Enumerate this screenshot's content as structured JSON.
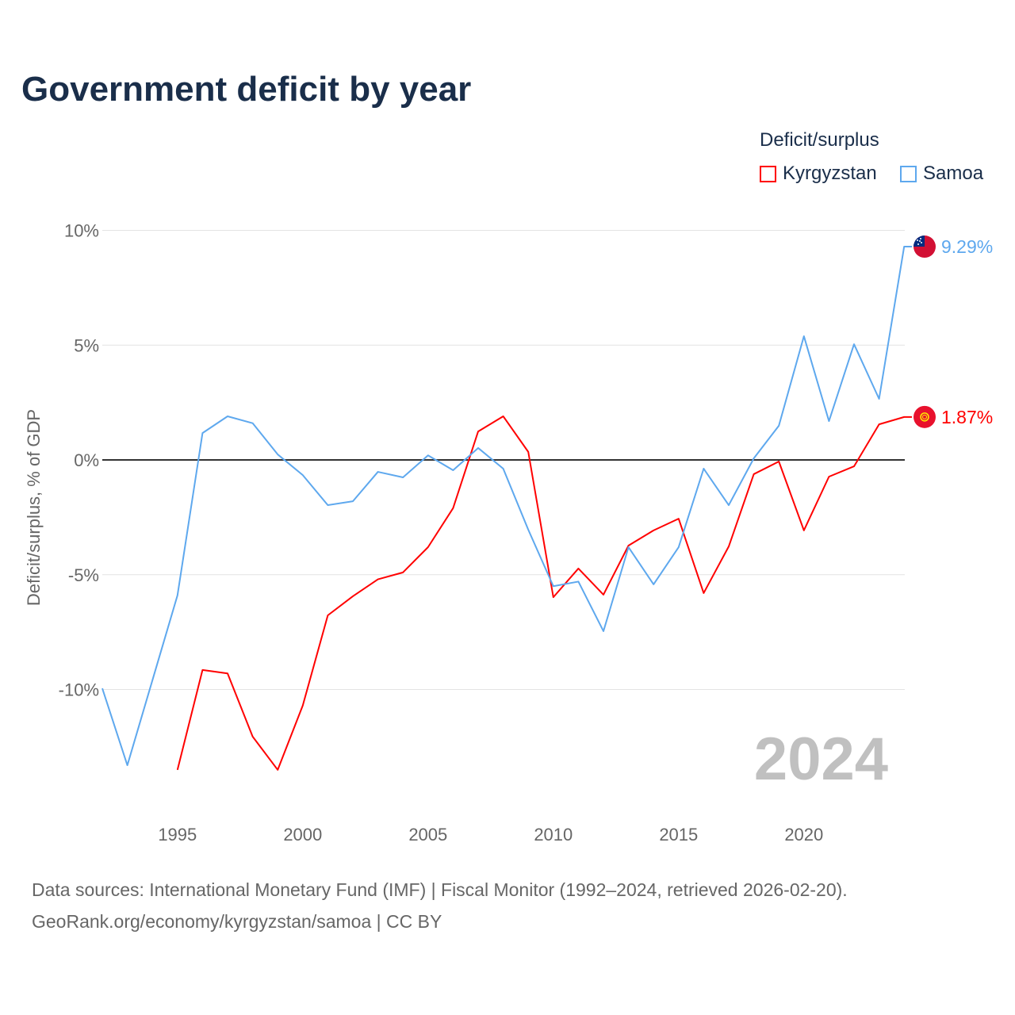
{
  "chart_data": {
    "type": "line",
    "title": "Government deficit by year",
    "legend_title": "Deficit/surplus",
    "legend_placement": "top-right",
    "ylabel": "Deficit/surplus, % of GDP",
    "xlabel": "",
    "ylim": [
      -14.5,
      10
    ],
    "xlim": [
      1992,
      2024
    ],
    "yticks": [
      {
        "v": 10,
        "label": "10%"
      },
      {
        "v": 5,
        "label": "5%"
      },
      {
        "v": 0,
        "label": "0%"
      },
      {
        "v": -5,
        "label": "-5%"
      },
      {
        "v": -10,
        "label": "-10%"
      }
    ],
    "xticks": [
      {
        "v": 1995,
        "label": "1995"
      },
      {
        "v": 2000,
        "label": "2000"
      },
      {
        "v": 2005,
        "label": "2005"
      },
      {
        "v": 2010,
        "label": "2010"
      },
      {
        "v": 2015,
        "label": "2015"
      },
      {
        "v": 2020,
        "label": "2020"
      }
    ],
    "year_watermark": "2024",
    "series": [
      {
        "name": "Kyrgyzstan",
        "color": "#ff0000",
        "end_label": "1.87%",
        "flag": "kyrgyzstan-flag",
        "x": [
          1995,
          1996,
          1997,
          1998,
          1999,
          2000,
          2001,
          2002,
          2003,
          2004,
          2005,
          2006,
          2007,
          2008,
          2009,
          2010,
          2011,
          2012,
          2013,
          2014,
          2015,
          2016,
          2017,
          2018,
          2019,
          2020,
          2021,
          2022,
          2023,
          2024
        ],
        "values": [
          -13.5,
          -9.15,
          -9.3,
          -12.05,
          -13.5,
          -10.7,
          -6.77,
          -5.94,
          -5.2,
          -4.9,
          -3.8,
          -2.1,
          1.24,
          1.9,
          0.35,
          -5.98,
          -4.73,
          -5.87,
          -3.73,
          -3.07,
          -2.56,
          -5.8,
          -3.77,
          -0.62,
          -0.07,
          -3.07,
          -0.73,
          -0.28,
          1.55,
          1.87
        ]
      },
      {
        "name": "Samoa",
        "color": "#5ea8ee",
        "end_label": "9.29%",
        "flag": "samoa-flag",
        "x": [
          1992,
          1993,
          1994,
          1995,
          1996,
          1997,
          1998,
          1999,
          2000,
          2001,
          2002,
          2003,
          2004,
          2005,
          2006,
          2007,
          2008,
          2009,
          2010,
          2011,
          2012,
          2013,
          2014,
          2015,
          2016,
          2017,
          2018,
          2019,
          2020,
          2021,
          2022,
          2023,
          2024
        ],
        "values": [
          -9.95,
          -13.3,
          -9.6,
          -5.9,
          1.17,
          1.9,
          1.6,
          0.24,
          -0.66,
          -1.97,
          -1.8,
          -0.52,
          -0.76,
          0.2,
          -0.45,
          0.52,
          -0.38,
          -3.04,
          -5.5,
          -5.3,
          -7.46,
          -3.8,
          -5.42,
          -3.8,
          -0.38,
          -1.97,
          0.07,
          1.49,
          5.39,
          1.69,
          5.04,
          2.66,
          9.29
        ]
      }
    ]
  },
  "footer": {
    "sources": "Data sources: International Monetary Fund (IMF) | Fiscal Monitor (1992–2024, retrieved 2026-02-20).",
    "attribution": "GeoRank.org/economy/kyrgyzstan/samoa | CC BY"
  }
}
